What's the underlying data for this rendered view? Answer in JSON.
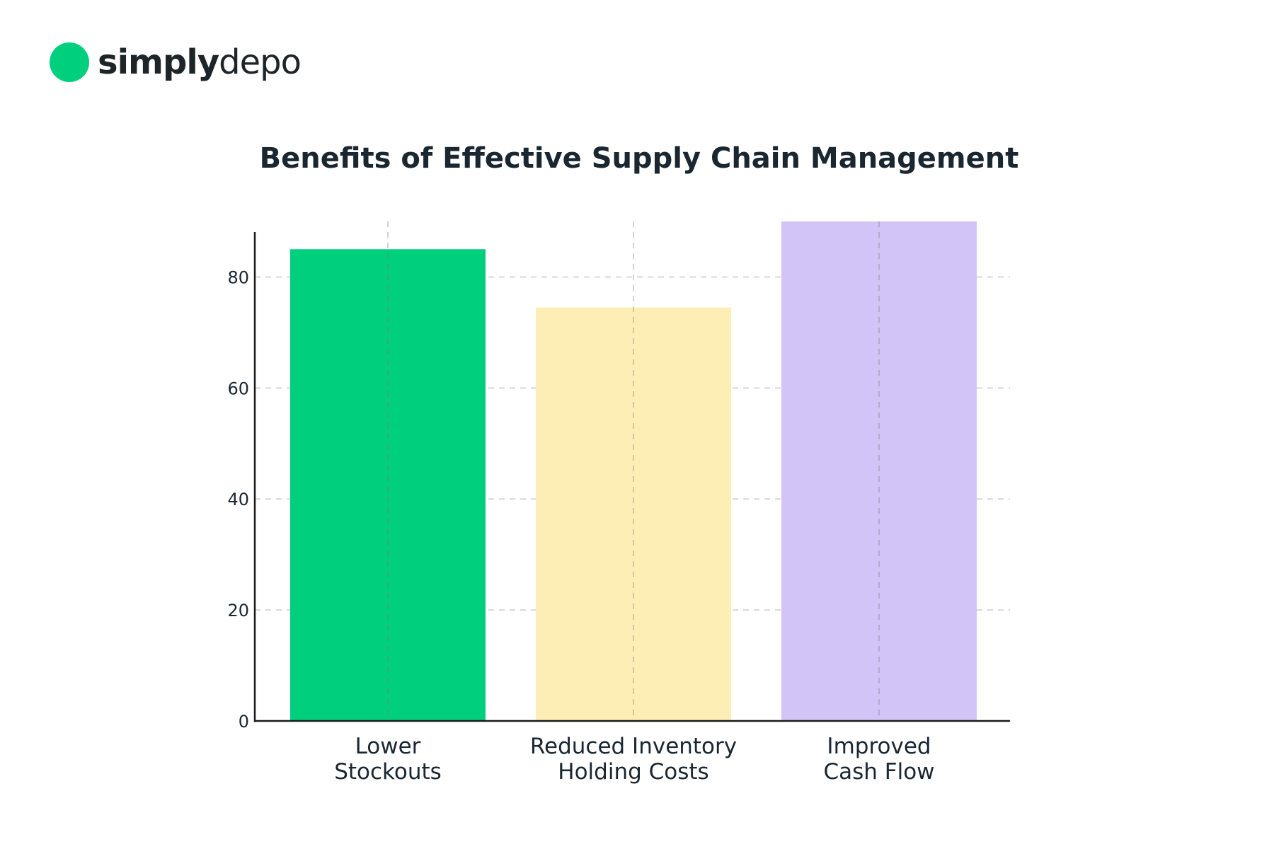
{
  "brand": {
    "name_bold": "simply",
    "name_light": "depo",
    "dot_color": "#00d07e"
  },
  "chart_data": {
    "type": "bar",
    "title": "Benefits of Effective Supply Chain Management",
    "xlabel": "",
    "ylabel": "",
    "categories": [
      [
        "Lower",
        "Stockouts"
      ],
      [
        "Reduced Inventory",
        "Holding Costs"
      ],
      [
        "Improved",
        "Cash Flow"
      ]
    ],
    "values": [
      85,
      74.5,
      90
    ],
    "colors": [
      "#00d07e",
      "#fdeeb5",
      "#d3c4f8"
    ],
    "yticks": [
      0,
      20,
      40,
      60,
      80
    ],
    "ylim": [
      0,
      90
    ],
    "grid": true
  }
}
